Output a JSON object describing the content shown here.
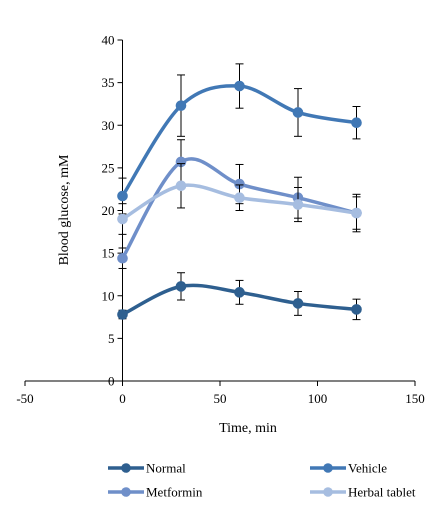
{
  "chart_data": {
    "type": "line",
    "title": "",
    "xlabel": "Time, min",
    "ylabel": "Blood glucose, mM",
    "xlim": [
      -50,
      150
    ],
    "ylim": [
      0,
      40
    ],
    "xticks": [
      "-50",
      "0",
      "50",
      "100",
      "150"
    ],
    "yticks": [
      "0",
      "5",
      "10",
      "15",
      "20",
      "25",
      "30",
      "35",
      "40"
    ],
    "grid": false,
    "legend_position": "bottom",
    "x": [
      0,
      30,
      60,
      90,
      120
    ],
    "series": [
      {
        "name": "Normal",
        "color": "#2e5f8f",
        "values": [
          7.8,
          11.1,
          10.4,
          9.1,
          8.4
        ],
        "errors": [
          0.5,
          1.6,
          1.4,
          1.4,
          1.2
        ]
      },
      {
        "name": "Vehicle",
        "color": "#4178b5",
        "values": [
          21.7,
          32.3,
          34.6,
          31.5,
          30.3
        ],
        "errors": [
          2.1,
          3.6,
          2.6,
          2.8,
          1.9
        ]
      },
      {
        "name": "Metformin",
        "color": "#6f8fc9",
        "values": [
          14.4,
          25.7,
          23.1,
          21.5,
          19.7
        ],
        "errors": [
          1.2,
          2.6,
          2.3,
          2.4,
          1.9
        ]
      },
      {
        "name": "Herbal tablet",
        "color": "#a6bde0",
        "values": [
          19.0,
          22.9,
          21.5,
          20.7,
          19.7
        ],
        "errors": [
          1.8,
          2.6,
          1.5,
          2.0,
          2.2
        ]
      }
    ]
  }
}
